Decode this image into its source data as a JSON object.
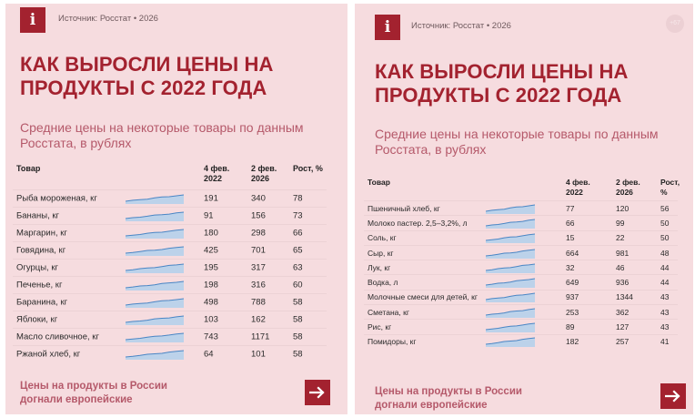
{
  "left": {
    "logo_letter": "i",
    "source": "Источник: Росстат • 2026",
    "title": "КАК ВЫРОСЛИ ЦЕНЫ НА ПРОДУКТЫ С 2022 ГОДА",
    "subtitle": "Средние цены на некоторые товары по данным Росстата, в рублях",
    "headers": {
      "name": "Товар",
      "a": "4 фев.\n2022",
      "b": "2 фев.\n2026",
      "g": "Рост, %"
    },
    "rows": [
      {
        "name": "Рыба мороженая, кг",
        "a": "191",
        "b": "340",
        "g": "78"
      },
      {
        "name": "Бананы, кг",
        "a": "91",
        "b": "156",
        "g": "73"
      },
      {
        "name": "Маргарин, кг",
        "a": "180",
        "b": "298",
        "g": "66"
      },
      {
        "name": "Говядина, кг",
        "a": "425",
        "b": "701",
        "g": "65"
      },
      {
        "name": "Огурцы, кг",
        "a": "195",
        "b": "317",
        "g": "63"
      },
      {
        "name": "Печенье, кг",
        "a": "198",
        "b": "316",
        "g": "60"
      },
      {
        "name": "Баранина, кг",
        "a": "498",
        "b": "788",
        "g": "58"
      },
      {
        "name": "Яблоки, кг",
        "a": "103",
        "b": "162",
        "g": "58"
      },
      {
        "name": "Масло сливочное, кг",
        "a": "743",
        "b": "1171",
        "g": "58"
      },
      {
        "name": "Ржаной хлеб, кг",
        "a": "64",
        "b": "101",
        "g": "58"
      }
    ],
    "footer": "Цены на продукты в России\nдогнали европейские",
    "arrow_icon": "arrow-right-icon"
  },
  "right": {
    "logo_letter": "i",
    "source": "Источник: Росстат • 2026",
    "badge": "+67",
    "title": "КАК ВЫРОСЛИ ЦЕНЫ НА ПРОДУКТЫ С 2022 ГОДА",
    "subtitle": "Средние цены на некоторые товары по данным Росстата, в рублях",
    "headers": {
      "name": "Товар",
      "a": "4 фев.\n2022",
      "b": "2 фев.\n2026",
      "g": "Рост, %"
    },
    "rows": [
      {
        "name": "Пшеничный хлеб, кг",
        "a": "77",
        "b": "120",
        "g": "56"
      },
      {
        "name": "Молоко пастер. 2,5–3,2%, л",
        "a": "66",
        "b": "99",
        "g": "50"
      },
      {
        "name": "Соль, кг",
        "a": "15",
        "b": "22",
        "g": "50"
      },
      {
        "name": "Сыр, кг",
        "a": "664",
        "b": "981",
        "g": "48"
      },
      {
        "name": "Лук, кг",
        "a": "32",
        "b": "46",
        "g": "44"
      },
      {
        "name": "Водка, л",
        "a": "649",
        "b": "936",
        "g": "44"
      },
      {
        "name": "Молочные смеси для детей, кг",
        "a": "937",
        "b": "1344",
        "g": "43"
      },
      {
        "name": "Сметана, кг",
        "a": "253",
        "b": "362",
        "g": "43"
      },
      {
        "name": "Рис, кг",
        "a": "89",
        "b": "127",
        "a_note": "",
        "g": "43"
      },
      {
        "name": "Помидоры, кг",
        "a": "182",
        "b": "257",
        "g": "41"
      }
    ],
    "footer": "Цены на продукты в России\nдогнали европейские",
    "arrow_icon": "arrow-right-icon"
  },
  "colors": {
    "background": "#f6dcdf",
    "accent": "#a3222f",
    "subtitle": "#b5596a",
    "sparkline_stroke": "#4a86c5",
    "sparkline_fill": "#bcd2ea"
  }
}
